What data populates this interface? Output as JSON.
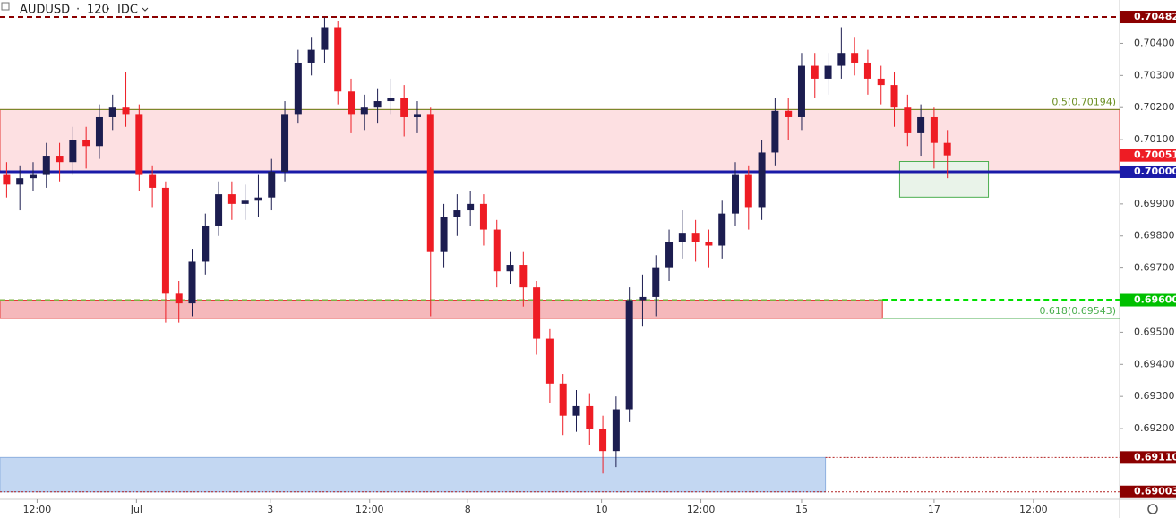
{
  "chart_data": {
    "type": "candlestick",
    "symbol": "AUDUSD",
    "interval": "120",
    "source": "IDC",
    "up_color": "#1c1d50",
    "down_color": "#ee1c24",
    "xlim": [
      0,
      84.5
    ],
    "xticks": [
      {
        "value": 2.8,
        "label": "12:00"
      },
      {
        "value": 10.3,
        "label": "Jul"
      },
      {
        "value": 20.4,
        "label": "3"
      },
      {
        "value": 27.9,
        "label": "12:00"
      },
      {
        "value": 35.3,
        "label": "8"
      },
      {
        "value": 45.4,
        "label": "10"
      },
      {
        "value": 52.9,
        "label": "12:00"
      },
      {
        "value": 60.5,
        "label": "15"
      },
      {
        "value": 70.5,
        "label": "17"
      },
      {
        "value": 78.0,
        "label": "12:00"
      }
    ],
    "ylim": [
      0.6898,
      0.70535
    ],
    "yticks": [
      {
        "value": 0.692,
        "label": "0.69200"
      },
      {
        "value": 0.693,
        "label": "0.69300"
      },
      {
        "value": 0.694,
        "label": "0.69400"
      },
      {
        "value": 0.695,
        "label": "0.69500"
      },
      {
        "value": 0.697,
        "label": "0.69700"
      },
      {
        "value": 0.698,
        "label": "0.69800"
      },
      {
        "value": 0.699,
        "label": "0.69900"
      },
      {
        "value": 0.701,
        "label": "0.70100"
      },
      {
        "value": 0.702,
        "label": "0.70200"
      },
      {
        "value": 0.703,
        "label": "0.70300"
      },
      {
        "value": 0.704,
        "label": "0.70400"
      }
    ],
    "open": [
      0.6999,
      0.6996,
      0.6998,
      0.6999,
      0.7005,
      0.7003,
      0.701,
      0.7008,
      0.7017,
      0.702,
      0.7018,
      0.6999,
      0.6995,
      0.6962,
      0.6959,
      0.6972,
      0.6983,
      0.6993,
      0.699,
      0.6991,
      0.6992,
      0.7,
      0.7018,
      0.7034,
      0.7038,
      0.7045,
      0.7025,
      0.7018,
      0.702,
      0.7022,
      0.7023,
      0.7017,
      0.7018,
      0.6975,
      0.6986,
      0.6988,
      0.699,
      0.6982,
      0.6969,
      0.6971,
      0.6964,
      0.6948,
      0.6934,
      0.6924,
      0.6927,
      0.692,
      0.6913,
      0.6926,
      0.696,
      0.6961,
      0.697,
      0.6978,
      0.6981,
      0.6978,
      0.6977,
      0.6987,
      0.6999,
      0.6989,
      0.7006,
      0.7019,
      0.7017,
      0.7033,
      0.7029,
      0.7033,
      0.7037,
      0.7034,
      0.7029,
      0.7027,
      0.702,
      0.7012,
      0.7017,
      0.7009
    ],
    "high": [
      0.7003,
      0.7002,
      0.7003,
      0.7009,
      0.7009,
      0.7014,
      0.7014,
      0.7021,
      0.7024,
      0.7031,
      0.7021,
      0.7002,
      0.6997,
      0.6966,
      0.6976,
      0.6987,
      0.6997,
      0.6997,
      0.6996,
      0.6999,
      0.7004,
      0.7022,
      0.7038,
      0.7042,
      0.7048,
      0.7047,
      0.7029,
      0.7024,
      0.7026,
      0.7029,
      0.7027,
      0.7022,
      0.702,
      0.699,
      0.6993,
      0.6994,
      0.6993,
      0.6985,
      0.6975,
      0.6975,
      0.6966,
      0.6951,
      0.6937,
      0.6932,
      0.6931,
      0.6924,
      0.693,
      0.6964,
      0.6968,
      0.6974,
      0.6982,
      0.6988,
      0.6985,
      0.6982,
      0.6991,
      0.7003,
      0.7002,
      0.701,
      0.7023,
      0.7023,
      0.7037,
      0.7037,
      0.7037,
      0.7045,
      0.7042,
      0.7038,
      0.7033,
      0.7031,
      0.7024,
      0.7021,
      0.702,
      0.7013
    ],
    "low": [
      0.6992,
      0.6988,
      0.6994,
      0.6995,
      0.6997,
      0.6999,
      0.7001,
      0.7004,
      0.7013,
      0.7014,
      0.6994,
      0.6989,
      0.6953,
      0.6953,
      0.6955,
      0.6968,
      0.698,
      0.6985,
      0.6985,
      0.6986,
      0.6988,
      0.6997,
      0.7015,
      0.703,
      0.7034,
      0.7021,
      0.7012,
      0.7013,
      0.7015,
      0.7018,
      0.7011,
      0.7012,
      0.6955,
      0.697,
      0.698,
      0.6983,
      0.6977,
      0.6964,
      0.6965,
      0.6958,
      0.6943,
      0.6928,
      0.6918,
      0.6919,
      0.6915,
      0.6906,
      0.6908,
      0.6922,
      0.6952,
      0.6955,
      0.6966,
      0.6973,
      0.6972,
      0.697,
      0.6973,
      0.6983,
      0.6982,
      0.6985,
      0.7002,
      0.701,
      0.7013,
      0.7023,
      0.7024,
      0.7029,
      0.703,
      0.7024,
      0.7021,
      0.7014,
      0.7008,
      0.7005,
      0.7001,
      0.6998
    ],
    "close": [
      0.6996,
      0.6998,
      0.6999,
      0.7005,
      0.7003,
      0.701,
      0.7008,
      0.7017,
      0.702,
      0.7018,
      0.6999,
      0.6995,
      0.6962,
      0.6959,
      0.6972,
      0.6983,
      0.6993,
      0.699,
      0.6991,
      0.6992,
      0.7,
      0.7018,
      0.7034,
      0.7038,
      0.7045,
      0.7025,
      0.7018,
      0.702,
      0.7022,
      0.7023,
      0.7017,
      0.7018,
      0.6975,
      0.6986,
      0.6988,
      0.699,
      0.6982,
      0.6969,
      0.6971,
      0.6964,
      0.6948,
      0.6934,
      0.6924,
      0.6927,
      0.692,
      0.6913,
      0.6926,
      0.696,
      0.6961,
      0.697,
      0.6978,
      0.6981,
      0.6978,
      0.6977,
      0.6987,
      0.6999,
      0.6989,
      0.7006,
      0.7019,
      0.7017,
      0.7033,
      0.7029,
      0.7033,
      0.7037,
      0.7034,
      0.7029,
      0.7027,
      0.702,
      0.7012,
      0.7017,
      0.7009,
      0.70051
    ],
    "zones": [
      {
        "from": 0,
        "to": 84.5,
        "top": 0.70194,
        "bottom": 0.7,
        "fill": "#fde0e2",
        "stroke": "#e53935"
      },
      {
        "from": 0,
        "to": 66.6,
        "top": 0.696,
        "bottom": 0.69543,
        "fill": "#f5b8bb",
        "stroke": "#e53935"
      },
      {
        "from": 0,
        "to": 62.3,
        "top": 0.6911,
        "bottom": 0.69003,
        "fill": "#c3d7f2",
        "stroke": "#8fb0e0"
      },
      {
        "from": 67.9,
        "to": 74.6,
        "top": 0.70032,
        "bottom": 0.69921,
        "fill": "#e9f3e9",
        "stroke": "#4caf50"
      }
    ],
    "levels": [
      {
        "value": 0.70482,
        "from": 0,
        "to": 84.5,
        "color": "#8b0000",
        "style": "dashed",
        "width": 2
      },
      {
        "value": 0.70194,
        "from": 0,
        "to": 84.5,
        "color": "#6b8e23",
        "style": "solid",
        "width": 1
      },
      {
        "value": 0.7,
        "from": 0,
        "to": 84.5,
        "color": "#1a1aa8",
        "style": "solid",
        "width": 3
      },
      {
        "value": 0.696,
        "from": 0,
        "to": 66.6,
        "color": "#7cb342",
        "style": "dashed",
        "width": 2
      },
      {
        "value": 0.696,
        "from": 66.6,
        "to": 84.5,
        "color": "#00e000",
        "style": "dashed",
        "width": 3
      },
      {
        "value": 0.69543,
        "from": 66.6,
        "to": 84.5,
        "color": "#4caf50",
        "style": "solid",
        "width": 1
      },
      {
        "value": 0.6911,
        "from": 62.3,
        "to": 84.5,
        "color": "#b22222",
        "style": "dotted",
        "width": 1
      },
      {
        "value": 0.69003,
        "from": 0,
        "to": 84.5,
        "color": "#b22222",
        "style": "dotted",
        "width": 1
      }
    ],
    "annotations": [
      {
        "text": "0.5(0.70194)",
        "value": 0.70194,
        "color": "#6b8e23"
      },
      {
        "text": "0.618(0.69543)",
        "value": 0.69543,
        "color": "#4caf50"
      }
    ],
    "price_labels": [
      {
        "value": 0.70482,
        "label": "0.70482",
        "color": "#8b0000"
      },
      {
        "value": 0.70051,
        "label": "0.70051",
        "color": "#ee1c24"
      },
      {
        "value": 0.7,
        "label": "0.70000",
        "color": "#1a1aa8"
      },
      {
        "value": 0.696,
        "label": "0.69600",
        "color": "#00c000"
      },
      {
        "value": 0.6911,
        "label": "0.69110",
        "color": "#8b0000"
      },
      {
        "value": 0.69003,
        "label": "0.69003",
        "color": "#8b0000"
      }
    ]
  }
}
